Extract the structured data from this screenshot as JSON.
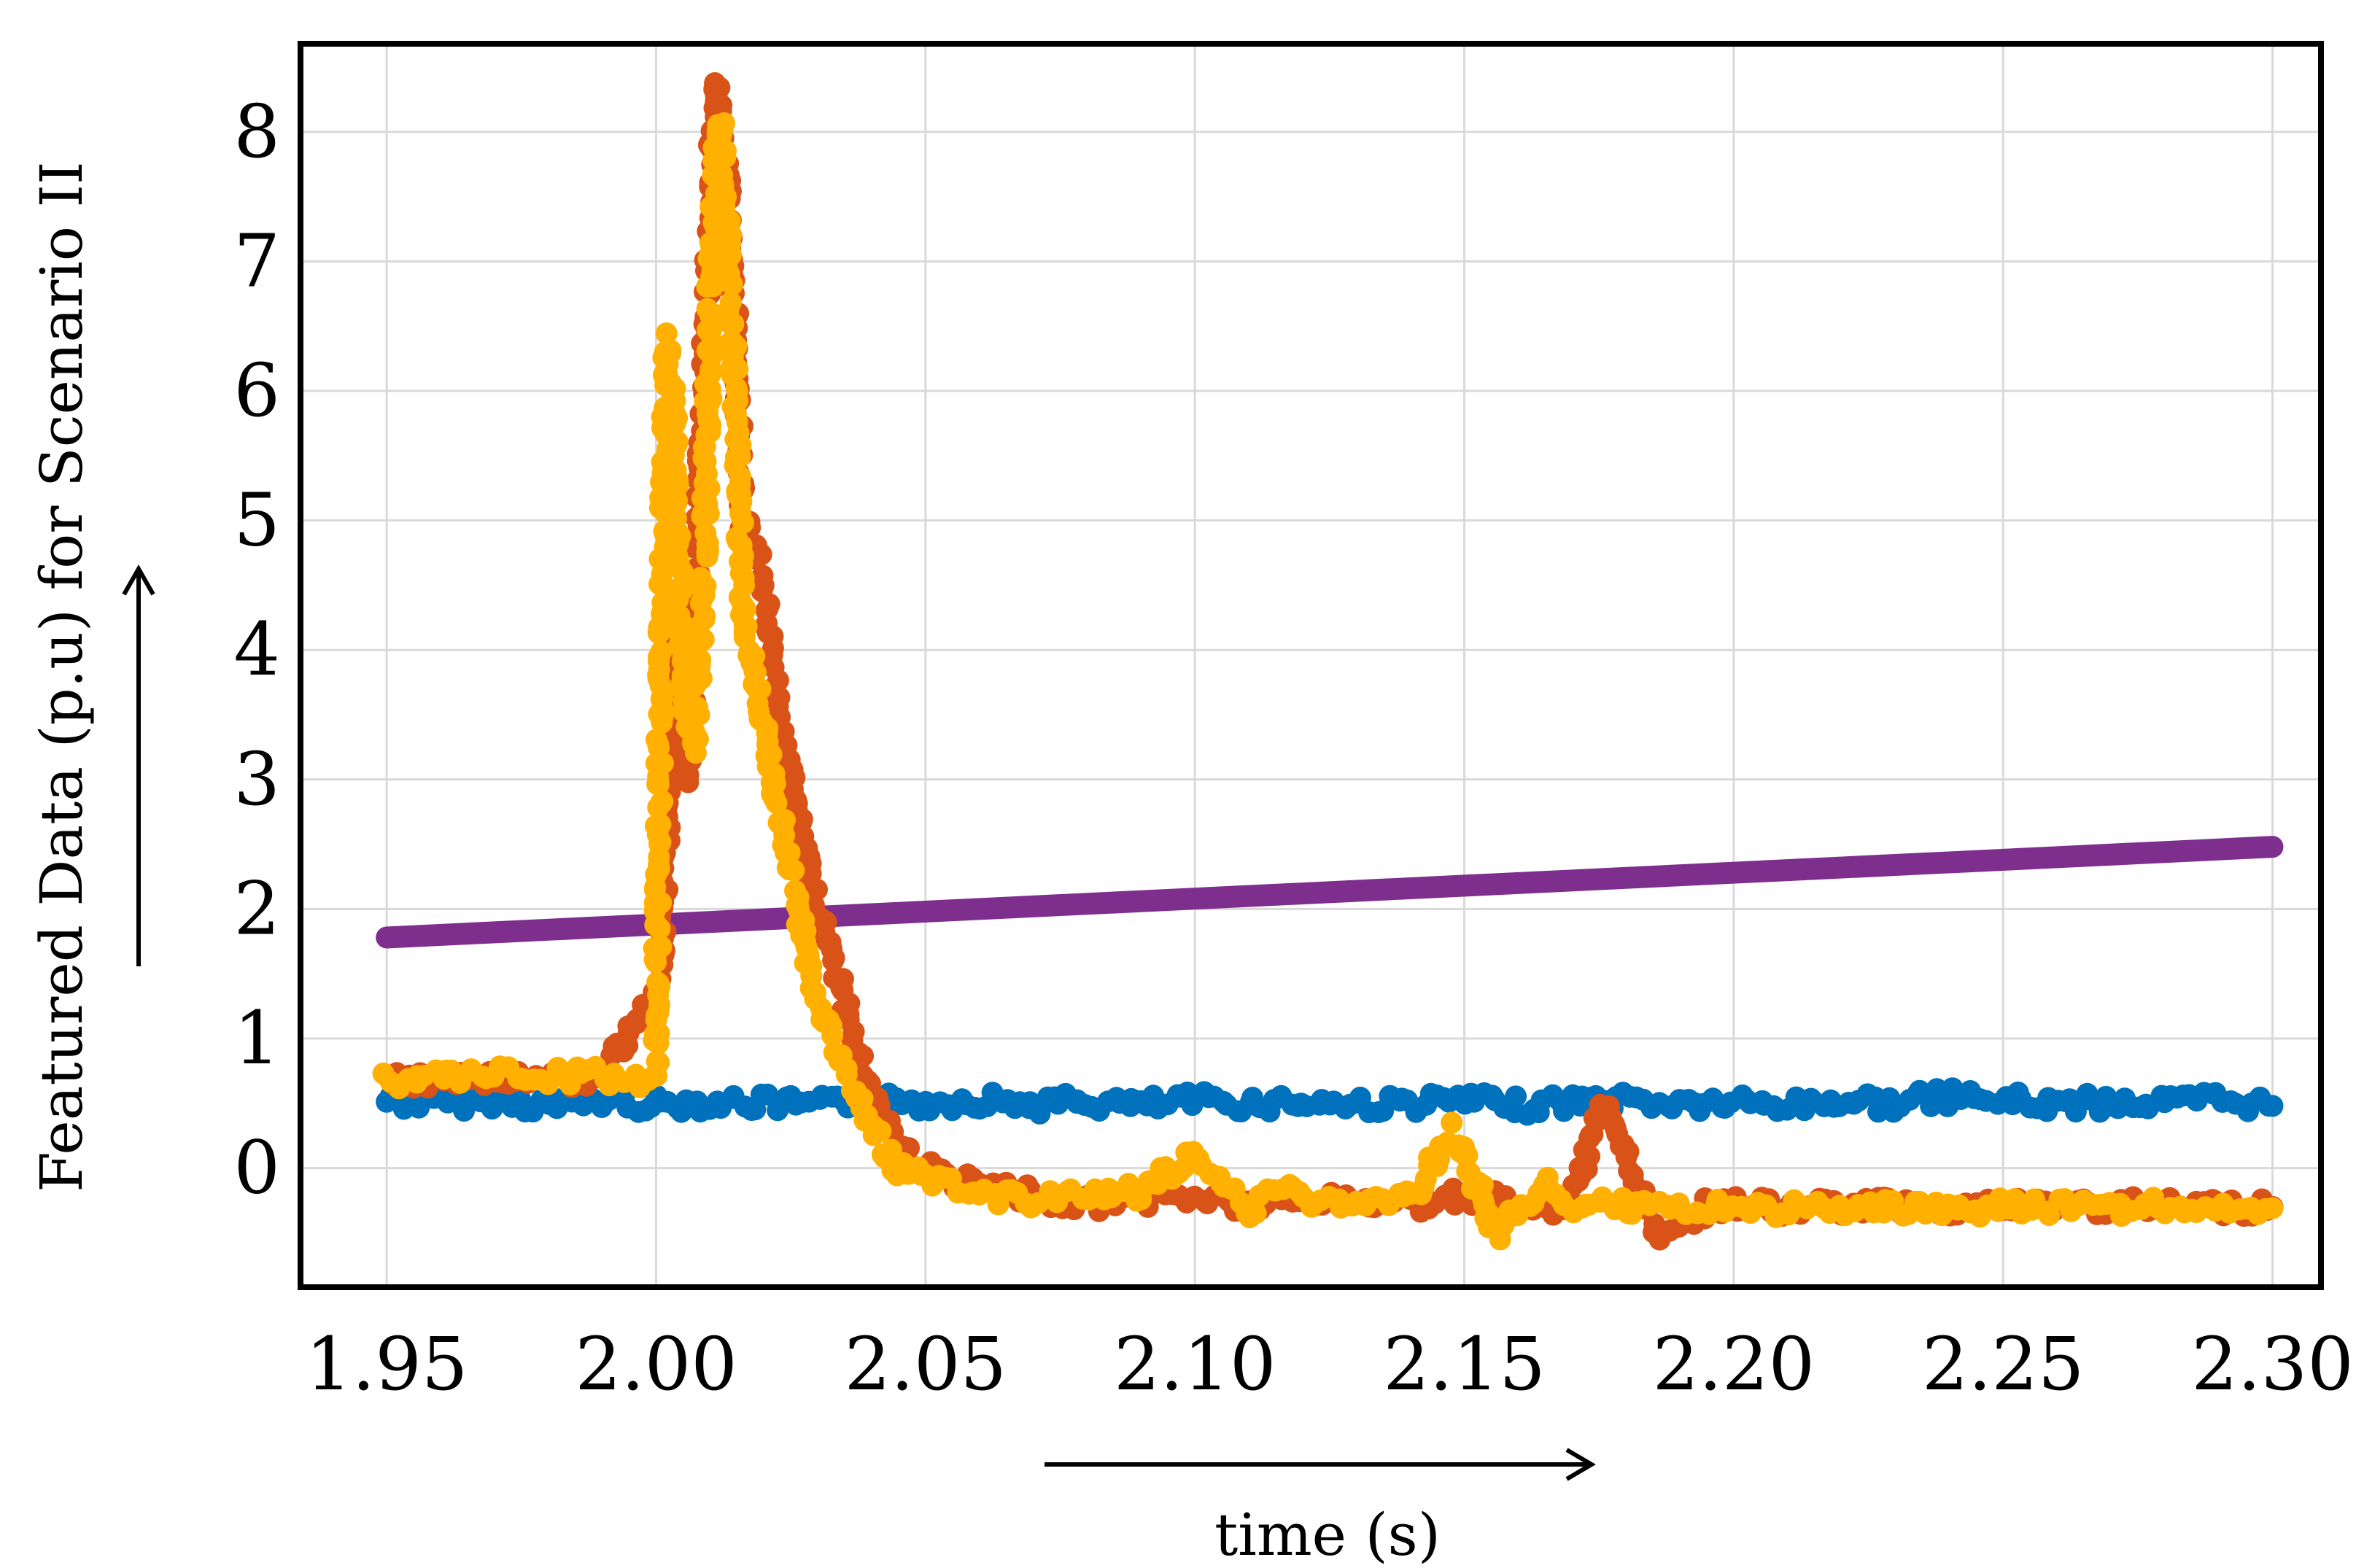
{
  "chart_data": {
    "type": "scatter",
    "title": "",
    "xlabel": "time (s)",
    "ylabel": "Featured Data (p.u) for Scenario II",
    "xlim": [
      1.934,
      2.309
    ],
    "ylim": [
      -0.92,
      8.68
    ],
    "xticks": [
      1.95,
      2.0,
      2.05,
      2.1,
      2.15,
      2.2,
      2.25,
      2.3
    ],
    "xtick_labels": [
      "1.95",
      "2.00",
      "2.05",
      "2.10",
      "2.15",
      "2.20",
      "2.25",
      "2.30"
    ],
    "yticks": [
      0,
      1,
      2,
      3,
      4,
      5,
      6,
      7,
      8
    ],
    "ytick_labels": [
      "0",
      "1",
      "2",
      "3",
      "4",
      "5",
      "6",
      "7",
      "8"
    ],
    "grid": true,
    "legend": "none",
    "series": [
      {
        "color": "#0072bd",
        "kind": "points",
        "x": [
          1.95,
          1.96,
          1.97,
          1.98,
          1.99,
          2.0,
          2.01,
          2.02,
          2.03,
          2.04,
          2.05,
          2.06,
          2.07,
          2.08,
          2.09,
          2.1,
          2.11,
          2.12,
          2.13,
          2.14,
          2.15,
          2.16,
          2.17,
          2.18,
          2.19,
          2.2,
          2.21,
          2.22,
          2.23,
          2.24,
          2.25,
          2.26,
          2.27,
          2.28,
          2.29,
          2.3
        ],
        "y": [
          0.52,
          0.5,
          0.53,
          0.48,
          0.52,
          0.49,
          0.51,
          0.5,
          0.48,
          0.52,
          0.5,
          0.53,
          0.49,
          0.51,
          0.48,
          0.52,
          0.5,
          0.51,
          0.49,
          0.5,
          0.52,
          0.48,
          0.51,
          0.53,
          0.49,
          0.5,
          0.48,
          0.52,
          0.5,
          0.55,
          0.52,
          0.49,
          0.51,
          0.5,
          0.53,
          0.48
        ]
      },
      {
        "color": "#7e2f8e",
        "kind": "line",
        "x": [
          1.95,
          2.3
        ],
        "y": [
          1.78,
          2.48
        ]
      },
      {
        "color": "#d95319",
        "kind": "points",
        "x": [
          1.95,
          1.97,
          1.99,
          2.001,
          2.004,
          2.006,
          2.008,
          2.01,
          2.011,
          2.012,
          2.013,
          2.014,
          2.015,
          2.016,
          2.018,
          2.02,
          2.022,
          2.024,
          2.026,
          2.028,
          2.03,
          2.033,
          2.036,
          2.04,
          2.045,
          2.05,
          2.06,
          2.07,
          2.08,
          2.09,
          2.1,
          2.11,
          2.12,
          2.13,
          2.14,
          2.15,
          2.16,
          2.17,
          2.175,
          2.178,
          2.182,
          2.186,
          2.19,
          2.195,
          2.2,
          2.21,
          2.22,
          2.24,
          2.26,
          2.28,
          2.3
        ],
        "y": [
          0.68,
          0.7,
          0.69,
          1.5,
          4.5,
          3.0,
          5.2,
          7.4,
          8.4,
          8.0,
          7.7,
          7.0,
          6.3,
          5.0,
          4.9,
          4.5,
          3.8,
          3.3,
          2.8,
          2.4,
          2.0,
          1.6,
          1.1,
          0.6,
          0.2,
          0.0,
          -0.15,
          -0.2,
          -0.28,
          -0.24,
          -0.22,
          -0.3,
          -0.26,
          -0.25,
          -0.28,
          -0.2,
          -0.3,
          -0.28,
          0.5,
          0.3,
          -0.1,
          -0.5,
          -0.4,
          -0.3,
          -0.28,
          -0.3,
          -0.29,
          -0.3,
          -0.29,
          -0.3,
          -0.3
        ]
      },
      {
        "color": "#ffb000",
        "kind": "points",
        "x": [
          1.95,
          1.96,
          1.97,
          1.98,
          1.99,
          2.0,
          2.001,
          2.002,
          2.003,
          2.005,
          2.007,
          2.009,
          2.01,
          2.011,
          2.012,
          2.013,
          2.014,
          2.015,
          2.016,
          2.018,
          2.02,
          2.022,
          2.024,
          2.026,
          2.028,
          2.03,
          2.033,
          2.036,
          2.04,
          2.045,
          2.05,
          2.055,
          2.06,
          2.07,
          2.08,
          2.09,
          2.1,
          2.105,
          2.11,
          2.115,
          2.12,
          2.13,
          2.14,
          2.148,
          2.152,
          2.156,
          2.16,
          2.165,
          2.17,
          2.18,
          2.19,
          2.2,
          2.22,
          2.24,
          2.26,
          2.28,
          2.3
        ],
        "y": [
          0.68,
          0.7,
          0.72,
          0.7,
          0.71,
          0.68,
          4.45,
          6.4,
          6.0,
          3.8,
          3.2,
          4.7,
          6.7,
          7.8,
          8.1,
          7.4,
          6.5,
          5.7,
          4.3,
          3.9,
          3.4,
          2.9,
          2.5,
          2.1,
          1.7,
          1.3,
          1.0,
          0.7,
          0.3,
          0.0,
          -0.1,
          -0.15,
          -0.2,
          -0.25,
          -0.22,
          -0.18,
          0.1,
          -0.1,
          -0.35,
          -0.15,
          -0.25,
          -0.28,
          -0.25,
          0.28,
          -0.1,
          -0.5,
          -0.3,
          -0.1,
          -0.28,
          -0.3,
          -0.31,
          -0.32,
          -0.31,
          -0.3,
          -0.31,
          -0.3,
          -0.31
        ]
      }
    ]
  }
}
